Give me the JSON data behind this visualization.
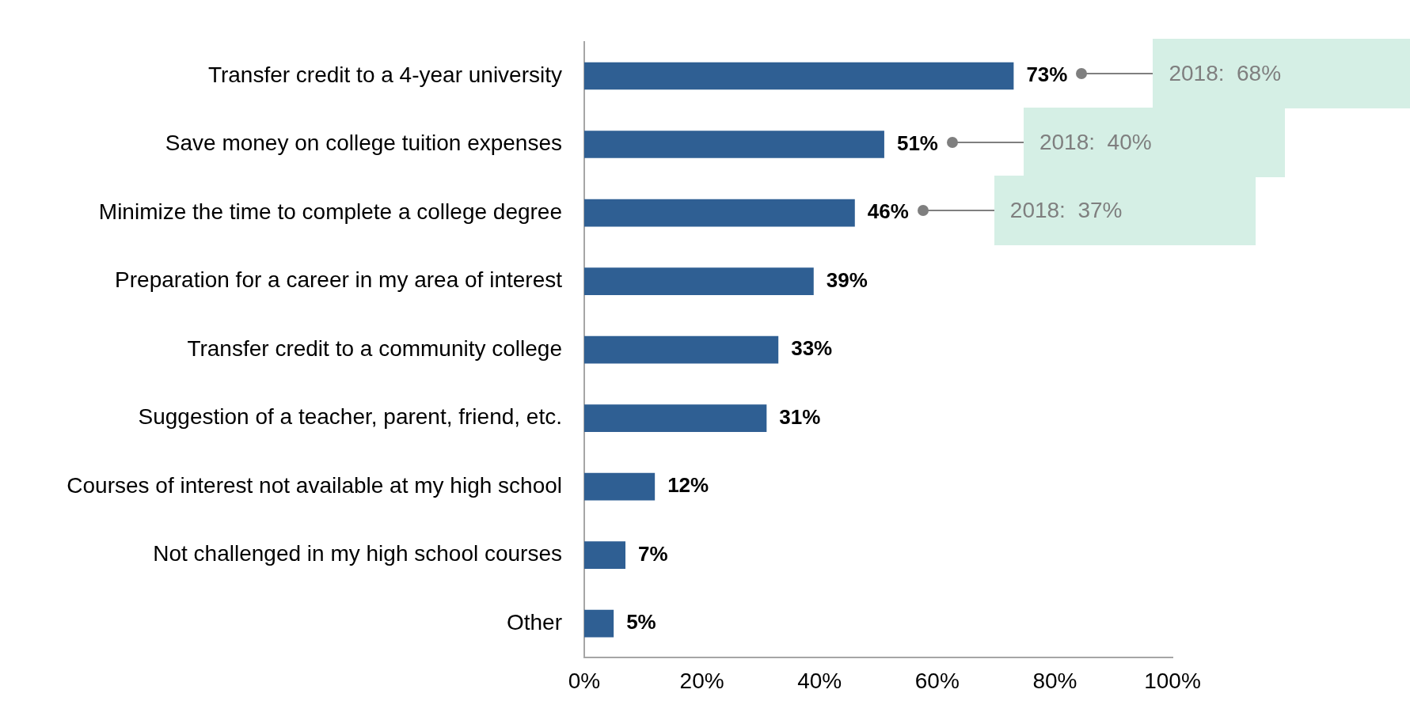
{
  "chart_data": {
    "type": "bar",
    "orientation": "horizontal",
    "categories": [
      "Transfer credit to a 4-year university",
      "Save money on college tuition expenses",
      "Minimize the time to complete a college degree",
      "Preparation for a career in my area of interest",
      "Transfer credit to a community college",
      "Suggestion of a teacher, parent, friend, etc.",
      "Courses of interest not available at my high school",
      "Not challenged in my high school courses",
      "Other"
    ],
    "values": [
      73,
      51,
      46,
      39,
      33,
      31,
      12,
      7,
      5
    ],
    "value_labels": [
      "73%",
      "51%",
      "46%",
      "39%",
      "33%",
      "31%",
      "12%",
      "7%",
      "5%"
    ],
    "color": "#2f5f93",
    "xlim": [
      0,
      100
    ],
    "xticks": [
      {
        "value": 0,
        "label": "0%"
      },
      {
        "value": 20,
        "label": "20%"
      },
      {
        "value": 40,
        "label": "40%"
      },
      {
        "value": 60,
        "label": "60%"
      },
      {
        "value": 80,
        "label": "80%"
      },
      {
        "value": 100,
        "label": "100%"
      }
    ],
    "grid": false,
    "legend": false,
    "annotations": [
      "2018:  68%",
      "2018:  40%",
      "2018:  37%"
    ]
  }
}
